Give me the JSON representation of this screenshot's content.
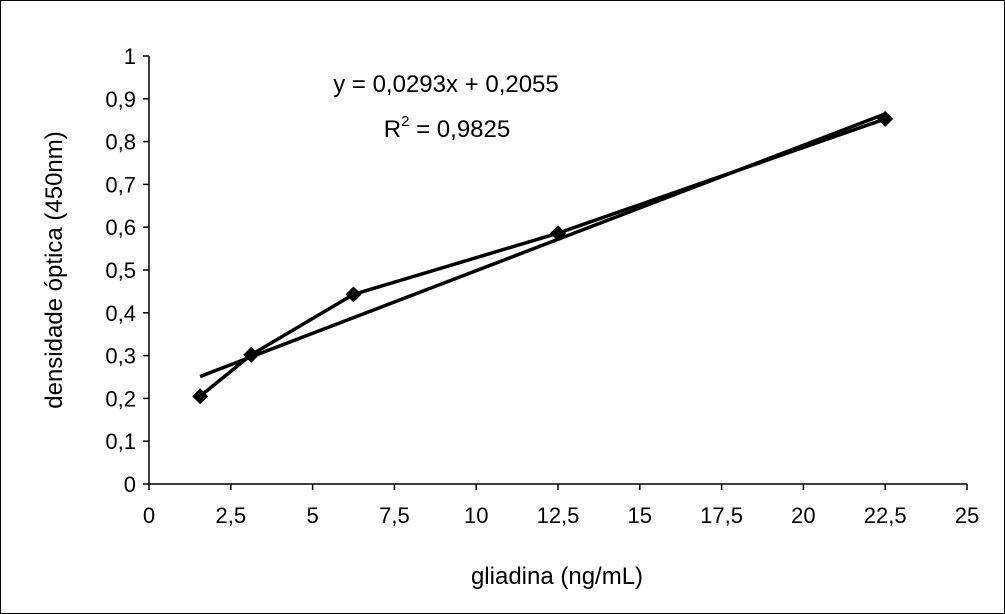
{
  "chart_data": {
    "type": "scatter",
    "title": "",
    "xlabel": "gliadina (ng/mL)",
    "ylabel": "densidade óptica (450nm)",
    "xlim": [
      0,
      25
    ],
    "ylim": [
      0,
      1
    ],
    "x_ticks": [
      "0",
      "2,5",
      "5",
      "7,5",
      "10",
      "12,5",
      "15",
      "17,5",
      "20",
      "22,5",
      "25"
    ],
    "x_tick_values": [
      0,
      2.5,
      5,
      7.5,
      10,
      12.5,
      15,
      17.5,
      20,
      22.5,
      25
    ],
    "y_ticks": [
      "0",
      "0,1",
      "0,2",
      "0,3",
      "0,4",
      "0,5",
      "0,6",
      "0,7",
      "0,8",
      "0,9",
      "1"
    ],
    "y_tick_values": [
      0,
      0.1,
      0.2,
      0.3,
      0.4,
      0.5,
      0.6,
      0.7,
      0.8,
      0.9,
      1
    ],
    "grid": false,
    "legend": "none",
    "series": [
      {
        "marker": "diamond",
        "connected": true,
        "x": [
          1.5625,
          3.125,
          6.25,
          12.5,
          22.5
        ],
        "y": [
          0.205,
          0.302,
          0.443,
          0.586,
          0.853
        ]
      }
    ],
    "trendline": {
      "type": "linear",
      "slope": 0.0293,
      "intercept": 0.2055,
      "x_range": [
        1.5625,
        22.5
      ],
      "equation_label": "y = 0,0293x + 0,2055",
      "r2_prefix": "R",
      "r2_sup": "2",
      "r2_value": " = 0,9825"
    },
    "colors": {
      "line": "#000000",
      "marker": "#000000",
      "axis": "#000000"
    }
  }
}
